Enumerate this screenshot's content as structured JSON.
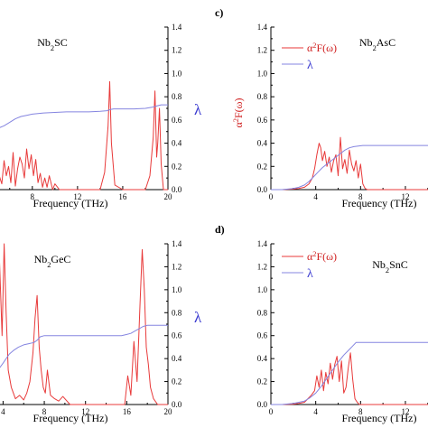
{
  "chart_data": [
    {
      "type": "line",
      "compound": "Nb₂SC",
      "xlabel": "Frequency (THz)",
      "xticks": [
        "8",
        "12",
        "16",
        "20"
      ],
      "yticks_right": [
        "0.0",
        "0.2",
        "0.4",
        "0.6",
        "0.8",
        "1.0",
        "1.2",
        "1.4"
      ],
      "right_axis_label": "λ",
      "xlim": [
        4.5,
        20
      ],
      "ylim": [
        0,
        1.4
      ],
      "series": [
        {
          "color": "#e83a3a",
          "x": [
            4.5,
            5.0,
            5.3,
            5.5,
            5.7,
            5.9,
            6.1,
            6.3,
            6.5,
            6.7,
            6.9,
            7.1,
            7.3,
            7.5,
            7.7,
            7.9,
            8.1,
            8.3,
            8.5,
            8.7,
            8.9,
            9.1,
            9.3,
            9.5,
            9.8,
            10.0,
            10.4,
            12,
            14.0,
            14.4,
            14.7,
            14.85,
            15.0,
            15.3,
            16,
            18,
            18.4,
            18.7,
            18.85,
            19.0,
            19.1,
            19.25,
            19.4,
            19.6,
            20
          ],
          "values": [
            0.0,
            0.14,
            0.05,
            0.25,
            0.12,
            0.2,
            0.06,
            0.32,
            0.03,
            0.18,
            0.28,
            0.22,
            0.1,
            0.35,
            0.18,
            0.3,
            0.12,
            0.26,
            0.06,
            0.14,
            0.02,
            0.1,
            0.02,
            0.12,
            0.0,
            0.05,
            0.0,
            0.0,
            0.0,
            0.15,
            0.55,
            0.93,
            0.4,
            0.04,
            0.0,
            0.0,
            0.12,
            0.45,
            0.85,
            0.28,
            0.4,
            0.7,
            0.22,
            0.0,
            0.0
          ]
        },
        {
          "color": "#8585e0",
          "x": [
            4.5,
            5.0,
            5.5,
            6.0,
            6.5,
            7.0,
            7.5,
            8.0,
            8.5,
            9.0,
            10.0,
            11.0,
            12.0,
            13.0,
            14.0,
            14.6,
            14.9,
            15.2,
            16,
            17,
            18,
            18.6,
            19.0,
            19.4,
            20
          ],
          "values": [
            0.5,
            0.53,
            0.55,
            0.58,
            0.61,
            0.63,
            0.64,
            0.65,
            0.655,
            0.66,
            0.665,
            0.67,
            0.67,
            0.67,
            0.675,
            0.68,
            0.69,
            0.695,
            0.695,
            0.695,
            0.7,
            0.71,
            0.72,
            0.73,
            0.73
          ]
        }
      ]
    },
    {
      "type": "line",
      "panel_letter": "c)",
      "compound": "Nb₂AsC",
      "xlabel": "Frequency (THz)",
      "xticks": [
        "0",
        "4",
        "8",
        "12"
      ],
      "yticks": [
        "0.0",
        "0.2",
        "0.4",
        "0.6",
        "0.8",
        "1.0",
        "1.2",
        "1.4"
      ],
      "ylabel": "α²F(ω)",
      "legend": [
        "α²F(ω)",
        "λ"
      ],
      "xlim": [
        0,
        14.5
      ],
      "ylim": [
        0,
        1.4
      ],
      "series": [
        {
          "name": "α²F(ω)",
          "color": "#e83a3a",
          "x": [
            0,
            1,
            2,
            2.5,
            3.0,
            3.4,
            3.7,
            3.9,
            4.1,
            4.3,
            4.45,
            4.6,
            4.8,
            5.0,
            5.2,
            5.4,
            5.6,
            5.8,
            6.0,
            6.2,
            6.4,
            6.6,
            6.8,
            7.0,
            7.2,
            7.4,
            7.6,
            7.8,
            8.0,
            8.2,
            8.4,
            8.6,
            14.5
          ],
          "values": [
            0,
            0.0,
            0.005,
            0.01,
            0.02,
            0.05,
            0.1,
            0.18,
            0.3,
            0.4,
            0.36,
            0.25,
            0.33,
            0.2,
            0.28,
            0.15,
            0.25,
            0.3,
            0.12,
            0.45,
            0.18,
            0.26,
            0.14,
            0.34,
            0.22,
            0.16,
            0.25,
            0.1,
            0.22,
            0.05,
            0.01,
            0.0,
            0.0
          ]
        },
        {
          "name": "λ",
          "color": "#8585e0",
          "x": [
            0,
            1,
            2,
            2.5,
            3.0,
            3.4,
            3.8,
            4.2,
            4.6,
            5.0,
            5.4,
            5.8,
            6.2,
            6.6,
            7.0,
            7.4,
            7.8,
            8.2,
            8.6,
            10,
            12,
            14.5
          ],
          "values": [
            0,
            0.0,
            0.01,
            0.02,
            0.04,
            0.07,
            0.11,
            0.15,
            0.19,
            0.22,
            0.25,
            0.28,
            0.31,
            0.34,
            0.36,
            0.37,
            0.375,
            0.38,
            0.38,
            0.38,
            0.38,
            0.38
          ]
        }
      ]
    },
    {
      "type": "line",
      "compound": "Nb₂GeC",
      "xlabel": "Frequency (THz)",
      "xticks": [
        "4",
        "8",
        "12",
        "16",
        "20"
      ],
      "yticks_right": [
        "0.0",
        "0.2",
        "0.4",
        "0.6",
        "0.8",
        "1.0",
        "1.2",
        "1.4"
      ],
      "right_axis_label": "λ",
      "xlim": [
        3,
        20
      ],
      "ylim": [
        0,
        1.4
      ],
      "series": [
        {
          "color": "#e83a3a",
          "x": [
            3.0,
            3.3,
            3.6,
            3.9,
            4.1,
            4.3,
            4.5,
            4.8,
            5.2,
            5.6,
            6.0,
            6.3,
            6.6,
            6.9,
            7.1,
            7.3,
            7.5,
            7.7,
            7.9,
            8.1,
            8.3,
            8.6,
            9.0,
            9.4,
            9.8,
            10.5,
            12,
            15.8,
            16.1,
            16.4,
            16.7,
            17.0,
            17.3,
            17.5,
            17.7,
            17.9,
            18.1,
            18.3,
            18.6,
            19,
            20
          ],
          "values": [
            0.3,
            0.9,
            1.4,
            0.6,
            1.4,
            0.8,
            0.3,
            0.15,
            0.05,
            0.08,
            0.04,
            0.1,
            0.2,
            0.45,
            0.75,
            0.95,
            0.5,
            0.3,
            0.15,
            0.1,
            0.3,
            0.08,
            0.05,
            0.03,
            0.07,
            0.0,
            0.0,
            0.0,
            0.25,
            0.08,
            0.55,
            0.2,
            0.9,
            1.35,
            1.0,
            0.5,
            0.35,
            0.15,
            0.05,
            0.0,
            0.0
          ]
        },
        {
          "color": "#8585e0",
          "x": [
            3.0,
            3.5,
            4.0,
            4.3,
            4.6,
            5.0,
            5.5,
            6.0,
            6.5,
            7.0,
            7.3,
            7.6,
            8.0,
            9,
            10,
            12,
            14,
            15.5,
            16.0,
            16.4,
            16.8,
            17.2,
            17.6,
            18.0,
            19,
            20
          ],
          "values": [
            0.25,
            0.3,
            0.36,
            0.4,
            0.44,
            0.47,
            0.5,
            0.52,
            0.53,
            0.54,
            0.56,
            0.59,
            0.6,
            0.6,
            0.6,
            0.6,
            0.6,
            0.6,
            0.61,
            0.62,
            0.64,
            0.66,
            0.68,
            0.69,
            0.69,
            0.69
          ]
        }
      ]
    },
    {
      "type": "line",
      "panel_letter": "d)",
      "compound": "Nb₂SnC",
      "xlabel": "Frequency (THz)",
      "xticks": [
        "0",
        "4",
        "8",
        "12"
      ],
      "yticks": [
        "0.0",
        "0.2",
        "0.4",
        "0.6",
        "0.8",
        "1.0",
        "1.2",
        "1.4"
      ],
      "legend": [
        "α²F(ω)",
        "λ"
      ],
      "xlim": [
        0,
        14.5
      ],
      "ylim": [
        0,
        1.4
      ],
      "series": [
        {
          "name": "α²F(ω)",
          "color": "#e83a3a",
          "x": [
            0,
            1,
            2,
            2.5,
            3.0,
            3.3,
            3.6,
            3.9,
            4.1,
            4.3,
            4.5,
            4.7,
            4.9,
            5.1,
            5.3,
            5.5,
            5.7,
            5.9,
            6.1,
            6.3,
            6.5,
            6.7,
            6.9,
            7.1,
            7.3,
            7.5,
            7.7,
            7.9,
            14.5
          ],
          "values": [
            0,
            0.0,
            0.003,
            0.01,
            0.02,
            0.05,
            0.08,
            0.12,
            0.25,
            0.15,
            0.3,
            0.12,
            0.28,
            0.18,
            0.36,
            0.22,
            0.35,
            0.42,
            0.2,
            0.38,
            0.1,
            0.15,
            0.32,
            0.45,
            0.22,
            0.05,
            0.02,
            0.0,
            0.0
          ]
        },
        {
          "name": "λ",
          "color": "#8585e0",
          "x": [
            0,
            1,
            2,
            2.5,
            3.0,
            3.5,
            4.0,
            4.5,
            5.0,
            5.5,
            6.0,
            6.5,
            7.0,
            7.3,
            7.6,
            8,
            10,
            12,
            14.5
          ],
          "values": [
            0,
            0.0,
            0.01,
            0.02,
            0.03,
            0.06,
            0.1,
            0.16,
            0.23,
            0.3,
            0.37,
            0.43,
            0.48,
            0.51,
            0.54,
            0.54,
            0.54,
            0.54,
            0.54
          ]
        }
      ]
    }
  ]
}
